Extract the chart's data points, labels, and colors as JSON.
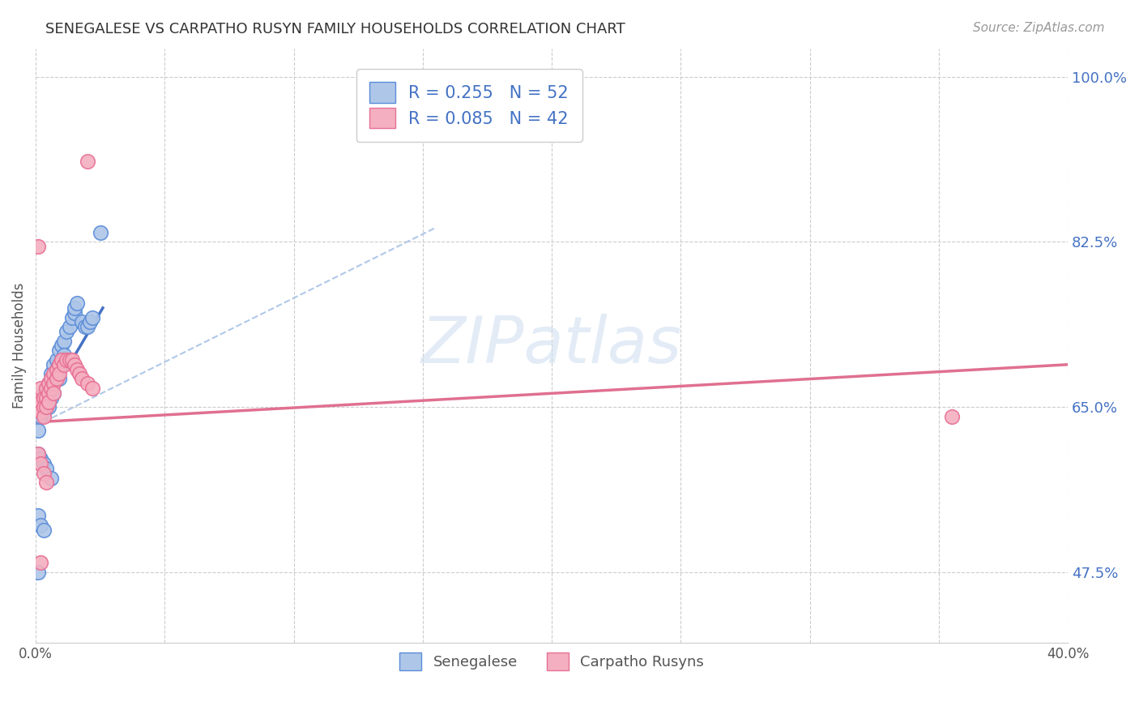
{
  "title": "SENEGALESE VS CARPATHO RUSYN FAMILY HOUSEHOLDS CORRELATION CHART",
  "source": "Source: ZipAtlas.com",
  "ylabel": "Family Households",
  "xlim": [
    0.0,
    0.4
  ],
  "ylim": [
    0.4,
    1.03
  ],
  "xtick_vals": [
    0.0,
    0.05,
    0.1,
    0.15,
    0.2,
    0.25,
    0.3,
    0.35,
    0.4
  ],
  "xticklabels": [
    "0.0%",
    "",
    "",
    "",
    "",
    "",
    "",
    "",
    "40.0%"
  ],
  "yticks_right": [
    0.475,
    0.65,
    0.825,
    1.0
  ],
  "yticklabels_right": [
    "47.5%",
    "65.0%",
    "82.5%",
    "100.0%"
  ],
  "blue_color": "#aec6e8",
  "pink_color": "#f4afc0",
  "blue_edge_color": "#5b8dd9",
  "pink_edge_color": "#e87095",
  "blue_line_color": "#4472c4",
  "pink_line_color": "#e07090",
  "dashed_line_color": "#b0c8e8",
  "watermark": "ZIPatlas",
  "blue_scatter_x": [
    0.001,
    0.001,
    0.002,
    0.002,
    0.002,
    0.003,
    0.003,
    0.003,
    0.003,
    0.004,
    0.004,
    0.004,
    0.004,
    0.005,
    0.005,
    0.005,
    0.006,
    0.006,
    0.006,
    0.007,
    0.007,
    0.007,
    0.008,
    0.008,
    0.009,
    0.009,
    0.009,
    0.01,
    0.01,
    0.011,
    0.011,
    0.012,
    0.013,
    0.014,
    0.015,
    0.015,
    0.016,
    0.018,
    0.019,
    0.02,
    0.021,
    0.022,
    0.025,
    0.001,
    0.002,
    0.003,
    0.004,
    0.006,
    0.001,
    0.002,
    0.003,
    0.001
  ],
  "blue_scatter_y": [
    0.645,
    0.625,
    0.66,
    0.655,
    0.64,
    0.665,
    0.66,
    0.65,
    0.645,
    0.67,
    0.665,
    0.655,
    0.66,
    0.675,
    0.665,
    0.65,
    0.685,
    0.67,
    0.66,
    0.695,
    0.68,
    0.665,
    0.7,
    0.69,
    0.71,
    0.695,
    0.68,
    0.715,
    0.7,
    0.72,
    0.705,
    0.73,
    0.735,
    0.745,
    0.75,
    0.755,
    0.76,
    0.74,
    0.735,
    0.735,
    0.74,
    0.745,
    0.835,
    0.6,
    0.595,
    0.59,
    0.585,
    0.575,
    0.535,
    0.525,
    0.52,
    0.475
  ],
  "pink_scatter_x": [
    0.001,
    0.001,
    0.002,
    0.002,
    0.002,
    0.003,
    0.003,
    0.003,
    0.004,
    0.004,
    0.004,
    0.005,
    0.005,
    0.005,
    0.006,
    0.006,
    0.007,
    0.007,
    0.007,
    0.008,
    0.008,
    0.009,
    0.009,
    0.01,
    0.011,
    0.012,
    0.013,
    0.014,
    0.015,
    0.016,
    0.017,
    0.018,
    0.02,
    0.022,
    0.001,
    0.002,
    0.003,
    0.004,
    0.001,
    0.002,
    0.355,
    0.02
  ],
  "pink_scatter_y": [
    0.66,
    0.65,
    0.67,
    0.655,
    0.645,
    0.66,
    0.65,
    0.64,
    0.67,
    0.66,
    0.65,
    0.675,
    0.665,
    0.655,
    0.68,
    0.67,
    0.685,
    0.675,
    0.665,
    0.69,
    0.68,
    0.695,
    0.685,
    0.7,
    0.695,
    0.7,
    0.7,
    0.7,
    0.695,
    0.69,
    0.685,
    0.68,
    0.675,
    0.67,
    0.6,
    0.59,
    0.58,
    0.57,
    0.82,
    0.485,
    0.64,
    0.91
  ],
  "blue_trendline_x": [
    0.0,
    0.026
  ],
  "blue_trendline_y": [
    0.635,
    0.755
  ],
  "pink_trendline_x": [
    0.0,
    0.4
  ],
  "pink_trendline_y": [
    0.634,
    0.695
  ],
  "dashed_line_x": [
    0.0,
    0.155
  ],
  "dashed_line_y": [
    0.63,
    0.84
  ]
}
